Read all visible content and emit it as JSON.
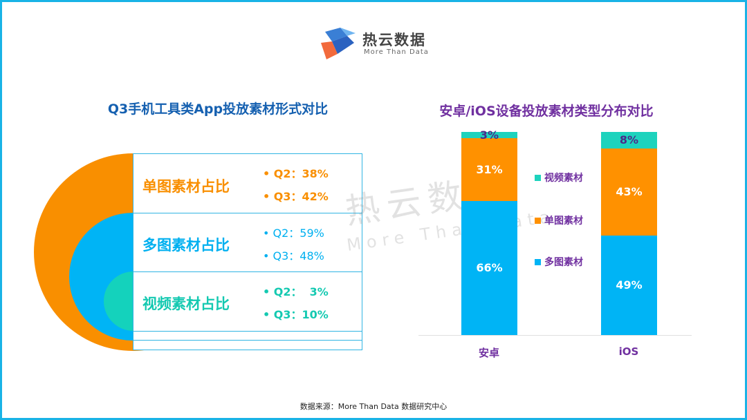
{
  "logo": {
    "name": "热云数据",
    "tagline": "More Than Data"
  },
  "left": {
    "title": "Q3手机工具类App投放素材形式对比",
    "rows": [
      {
        "label": "单图素材占比",
        "q2": "Q2：38%",
        "q3": "Q3：42%",
        "color": "#f98f00"
      },
      {
        "label": "多图素材占比",
        "q2": "Q2：59%",
        "q3": "Q3：48%",
        "color": "#00b0f0"
      },
      {
        "label": "视频素材占比",
        "q2": "Q2：  3%",
        "q3": "Q3：10%",
        "color": "#14c9b1"
      }
    ]
  },
  "chart_data": {
    "type": "bar",
    "stacked": true,
    "title": "安卓/iOS设备投放素材类型分布对比",
    "categories": [
      "安卓",
      "iOS"
    ],
    "series": [
      {
        "name": "多图素材",
        "values": [
          66,
          49
        ],
        "labels": [
          "66%",
          "49%"
        ],
        "color": "#00b4f5"
      },
      {
        "name": "单图素材",
        "values": [
          31,
          43
        ],
        "labels": [
          "31%",
          "43%"
        ],
        "color": "#ff9100"
      },
      {
        "name": "视频素材",
        "values": [
          3,
          8
        ],
        "labels": [
          "3%",
          "8%"
        ],
        "color": "#1dd3bd"
      }
    ],
    "legend_order": [
      "视频素材",
      "单图素材",
      "多图素材"
    ],
    "legend_position": "center",
    "ylim": [
      0,
      100
    ]
  },
  "watermark": {
    "cn": "热云数据",
    "en": "More Than Data"
  },
  "footer": "数据来源：More  Than  Data  数据研究中心"
}
